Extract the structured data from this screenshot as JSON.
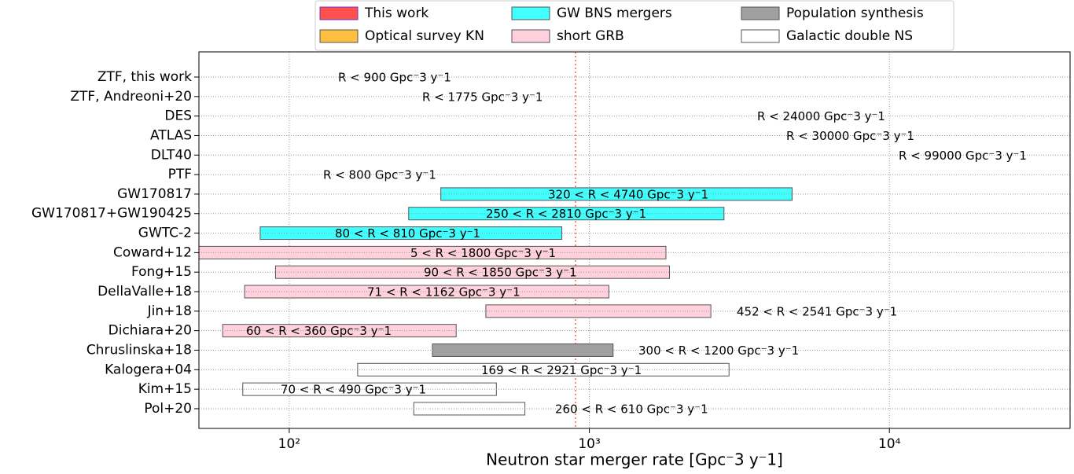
{
  "chart_data": {
    "type": "range-bar",
    "x_label": "Neutron star merger rate [Gpc⁻3 y⁻1]",
    "xlim": [
      50,
      40000
    ],
    "log_x": true,
    "grid": true,
    "xticks": [
      {
        "value": 100,
        "label": "10²"
      },
      {
        "value": 1000,
        "label": "10³"
      },
      {
        "value": 10000,
        "label": "10⁴"
      }
    ],
    "reference_line": {
      "value": 900,
      "color": "#ff6040"
    },
    "series": [
      {
        "name": "This work",
        "color": "#ff5050",
        "edge": "#7030c0"
      },
      {
        "name": "Optical survey KN",
        "color": "#ffbf40",
        "edge": "#555555"
      },
      {
        "name": "GW BNS mergers",
        "color": "#40ffff",
        "edge": "#555555"
      },
      {
        "name": "short GRB",
        "color": "#ffd1dc",
        "edge": "#555555"
      },
      {
        "name": "Population synthesis",
        "color": "#a0a0a0",
        "edge": "#555555"
      },
      {
        "name": "Galactic double NS",
        "color": "#ffffff",
        "edge": "#555555"
      }
    ],
    "rows": [
      {
        "name": "ZTF, this work",
        "label": "R < 900 Gpc⁻3 y⁻1"
      },
      {
        "name": "ZTF, Andreoni+20",
        "label": "R < 1775 Gpc⁻3 y⁻1"
      },
      {
        "name": "DES",
        "label": "R < 24000 Gpc⁻3 y⁻1"
      },
      {
        "name": "ATLAS",
        "label": "R < 30000 Gpc⁻3 y⁻1"
      },
      {
        "name": "DLT40",
        "label": "R < 99000 Gpc⁻3 y⁻1"
      },
      {
        "name": "PTF",
        "label": "R < 800 Gpc⁻3 y⁻1"
      },
      {
        "name": "GW170817",
        "label": "320 < R < 4740 Gpc⁻3 y⁻1",
        "low": 320,
        "high": 4740,
        "series": 2
      },
      {
        "name": "GW170817+GW190425",
        "label": "250 < R < 2810 Gpc⁻3 y⁻1",
        "low": 250,
        "high": 2810,
        "series": 2
      },
      {
        "name": "GWTC-2",
        "label": "80 < R < 810 Gpc⁻3 y⁻1",
        "low": 80,
        "high": 810,
        "series": 2
      },
      {
        "name": "Coward+12",
        "label": "5 < R < 1800 Gpc⁻3 y⁻1",
        "low": 5,
        "high": 1800,
        "series": 3
      },
      {
        "name": "Fong+15",
        "label": "90 < R < 1850 Gpc⁻3 y⁻1",
        "low": 90,
        "high": 1850,
        "series": 3
      },
      {
        "name": "DellaValle+18",
        "label": "71 < R < 1162 Gpc⁻3 y⁻1",
        "low": 71,
        "high": 1162,
        "series": 3
      },
      {
        "name": "Jin+18",
        "label": "452 < R < 2541 Gpc⁻3 y⁻1",
        "low": 452,
        "high": 2541,
        "series": 3
      },
      {
        "name": "Dichiara+20",
        "label": "60 < R < 360 Gpc⁻3 y⁻1",
        "low": 60,
        "high": 360,
        "series": 3
      },
      {
        "name": "Chruslinska+18",
        "label": "300 < R < 1200 Gpc⁻3 y⁻1",
        "low": 300,
        "high": 1200,
        "series": 4
      },
      {
        "name": "Kalogera+04",
        "label": "169 < R < 2921 Gpc⁻3 y⁻1",
        "low": 169,
        "high": 2921,
        "series": 5
      },
      {
        "name": "Kim+15",
        "label": "70 < R < 490 Gpc⁻3 y⁻1",
        "low": 70,
        "high": 490,
        "series": 5
      },
      {
        "name": "Pol+20",
        "label": "260 < R < 610 Gpc⁻3 y⁻1",
        "low": 260,
        "high": 610,
        "series": 5
      }
    ]
  }
}
